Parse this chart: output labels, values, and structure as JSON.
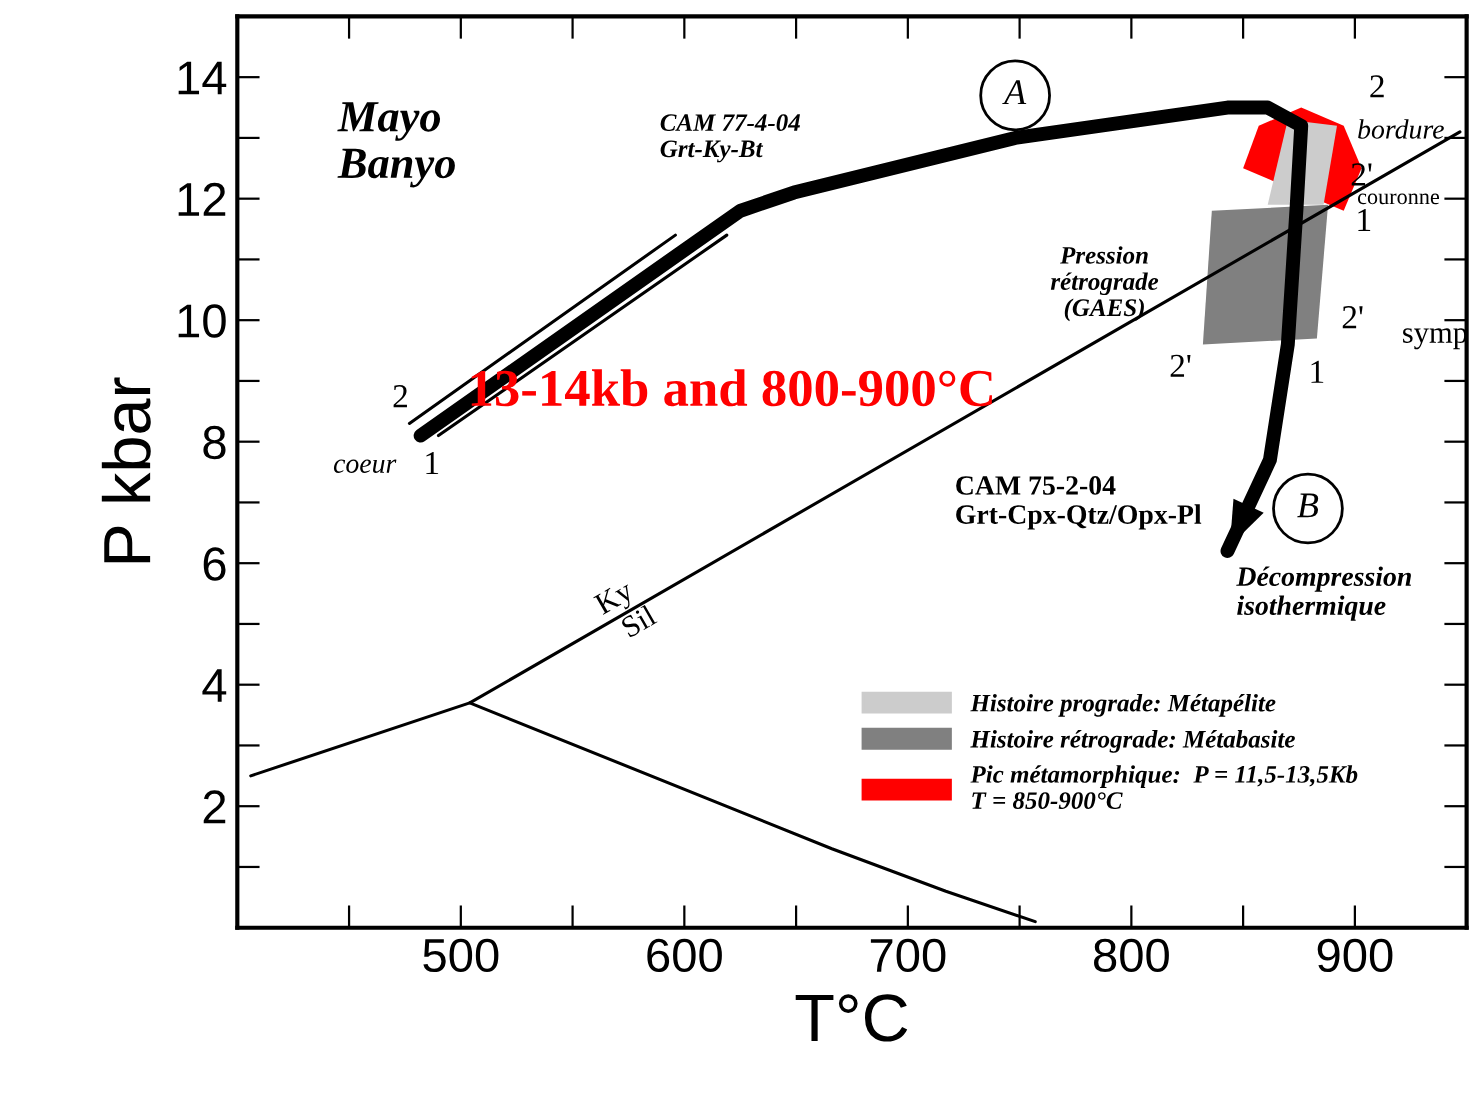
{
  "chart_data": {
    "type": "line",
    "xlabel": "T°C",
    "ylabel": "P kbar",
    "xlim": [
      400,
      950
    ],
    "ylim": [
      0,
      15
    ],
    "xticks": [
      {
        "value": 450,
        "label": null
      },
      500,
      {
        "value": 550,
        "label": null
      },
      600,
      {
        "value": 650,
        "label": null
      },
      700,
      {
        "value": 750,
        "label": null
      },
      800,
      {
        "value": 850,
        "label": null
      },
      900
    ],
    "yticks": [
      {
        "value": 1,
        "label": null
      },
      2,
      {
        "value": 3,
        "label": null
      },
      4,
      {
        "value": 5,
        "label": null
      },
      6,
      {
        "value": 7,
        "label": null
      },
      8,
      {
        "value": 9,
        "label": null
      },
      10,
      {
        "value": 11,
        "label": null
      },
      12,
      {
        "value": 13,
        "label": null
      },
      14
    ],
    "grid": false,
    "legend": "bottom right",
    "marker": "none",
    "line_style": "solid",
    "series": [
      {
        "type": "area",
        "name": "Pic métamorphique:  P = 11,5-13,5Kb\nT = 850-900°C",
        "color": "#ff0000",
        "x": [
          876,
          895,
          903,
          895,
          850,
          857
        ],
        "values": [
          13.5,
          13.2,
          12.5,
          11.8,
          12.5,
          13.2
        ]
      },
      {
        "type": "area",
        "name": "Histoire prograde: Métapélite",
        "color": "#cccccc",
        "x": [
          861,
          870,
          892,
          886
        ],
        "values": [
          11.9,
          13.3,
          13.2,
          11.9
        ]
      },
      {
        "type": "area",
        "name": "Histoire rétrograde: Métabasite",
        "color": "#808080",
        "x": [
          836,
          888,
          883,
          832
        ],
        "values": [
          11.8,
          11.9,
          9.7,
          9.6
        ]
      },
      {
        "color": "#000000",
        "x": [
          406,
          504,
          947
        ],
        "values": [
          2.5,
          3.7,
          13.1
        ]
      },
      {
        "color": "#000000",
        "x": [
          504,
          666,
          717,
          757
        ],
        "values": [
          3.7,
          1.3,
          0.6,
          0.1
        ]
      },
      {
        "color": "#000000",
        "x": [
          477,
          596
        ],
        "values": [
          8.3,
          11.4
        ]
      },
      {
        "color": "#000000",
        "x": [
          490,
          619
        ],
        "values": [
          8.1,
          11.4
        ]
      },
      {
        "color": "#000000",
        "x": [
          482,
          625,
          649,
          748,
          843,
          861,
          876,
          874,
          870,
          862,
          843
        ],
        "values": [
          8.1,
          11.8,
          12.1,
          13.0,
          13.5,
          13.5,
          13.2,
          11.9,
          9.6,
          7.7,
          6.2
        ]
      }
    ],
    "annotations": [
      "Mayo\nBanyo",
      "CAM 77-4-04\nGrt-Ky-Bt",
      "A",
      "B",
      "2",
      "1",
      "coeur",
      "13-14kb and 800-900°C",
      "Ky",
      "Sil",
      "Pression\nrétrograde\n(GAES)",
      "CAM 75-2-04\nGrt-Cpx-Qtz/Opx-Pl",
      "Décompression\nisothermique",
      "2",
      "bordure",
      "2'",
      "couronne",
      "1",
      "2'",
      "symp",
      "2'",
      "1"
    ]
  }
}
